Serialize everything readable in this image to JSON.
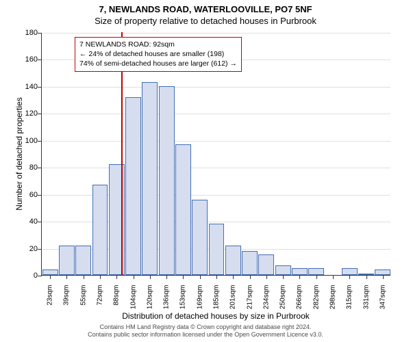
{
  "title_line1": "7, NEWLANDS ROAD, WATERLOOVILLE, PO7 5NF",
  "title_line2": "Size of property relative to detached houses in Purbrook",
  "yaxis_title": "Number of detached properties",
  "xaxis_title": "Distribution of detached houses by size in Purbrook",
  "info_box": {
    "line1": "7 NEWLANDS ROAD: 92sqm",
    "line2": "← 24% of detached houses are smaller (198)",
    "line3": "74% of semi-detached houses are larger (612) →"
  },
  "footer": {
    "line1": "Contains HM Land Registry data © Crown copyright and database right 2024.",
    "line2": "Contains public sector information licensed under the Open Government Licence v3.0."
  },
  "chart": {
    "type": "histogram",
    "ylim": [
      0,
      180
    ],
    "ytick_step": 20,
    "background_color": "#ffffff",
    "grid_color": "#e0e0e0",
    "axis_color": "#333333",
    "bar_fill": "#d5ddef",
    "bar_border": "#436eb4",
    "marker_color": "#c00000",
    "marker_x_value": 92,
    "x_origin": 15,
    "x_step": 16.19,
    "categories": [
      "23sqm",
      "39sqm",
      "55sqm",
      "72sqm",
      "88sqm",
      "104sqm",
      "120sqm",
      "136sqm",
      "153sqm",
      "169sqm",
      "185sqm",
      "201sqm",
      "217sqm",
      "234sqm",
      "250sqm",
      "266sqm",
      "282sqm",
      "298sqm",
      "315sqm",
      "331sqm",
      "347sqm"
    ],
    "values": [
      4,
      22,
      22,
      67,
      82,
      132,
      143,
      140,
      97,
      56,
      38,
      22,
      18,
      15,
      7,
      5,
      5,
      0,
      5,
      1,
      4
    ],
    "bar_width": 0.94,
    "title_fontsize": 13,
    "label_fontsize": 12,
    "tick_fontsize": 11,
    "xtick_fontsize": 10
  }
}
